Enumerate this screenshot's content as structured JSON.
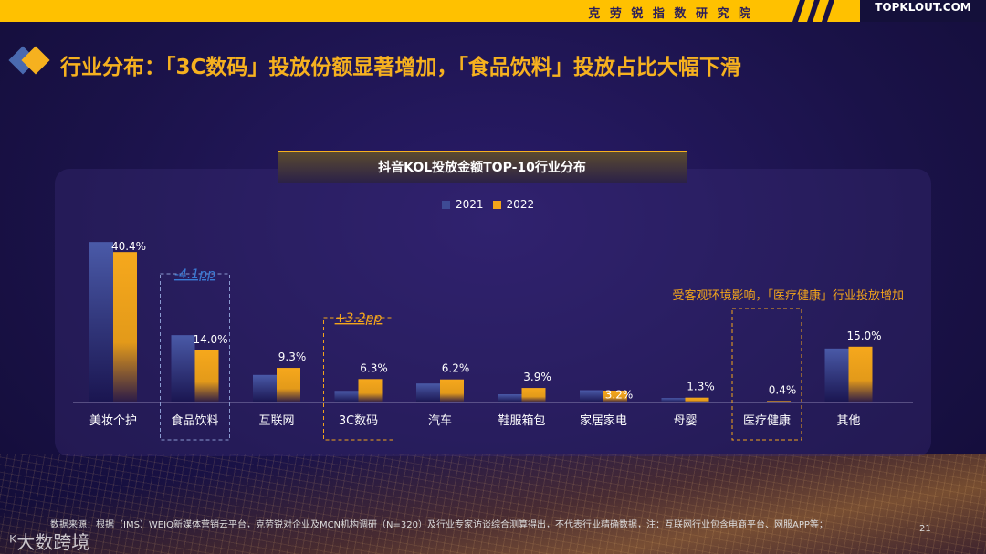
{
  "header": {
    "institute": "克 劳 锐 指 数 研 究 院",
    "logo": "TOPKLOUT.COM"
  },
  "title": "行业分布：「3C数码」投放份额显著增加，「食品饮料」投放占比大幅下滑",
  "colors": {
    "accent": "#f6b11f",
    "series2021": "#3e4a94",
    "series2022": "#f3a51b",
    "topbar": "#ffc100"
  },
  "chart_data": {
    "type": "bar",
    "title": "抖音KOL投放金额TOP-10行业分布",
    "categories": [
      "美妆个护",
      "食品饮料",
      "互联网",
      "3C数码",
      "汽车",
      "鞋服箱包",
      "家居家电",
      "母婴",
      "医疗健康",
      "其他"
    ],
    "series": [
      {
        "name": "2021",
        "values": [
          43.1,
          18.1,
          7.4,
          3.1,
          5.1,
          2.2,
          3.3,
          1.2,
          0.1,
          14.5
        ]
      },
      {
        "name": "2022",
        "values": [
          40.4,
          14.0,
          9.3,
          6.3,
          6.2,
          3.9,
          3.2,
          1.3,
          0.4,
          15.0
        ]
      }
    ],
    "data_labels": [
      "40.4%",
      "14.0%",
      "9.3%",
      "6.3%",
      "6.2%",
      "3.9%",
      "3.2%",
      "1.3%",
      "0.4%",
      "15.0%"
    ],
    "annotations": [
      {
        "category": "食品饮料",
        "text": "-4.1pp",
        "color": "#3a7bd5"
      },
      {
        "category": "3C数码",
        "text": "+3.2pp",
        "color": "#f3a51b"
      },
      {
        "category": "医疗健康",
        "text": "受客观环境影响，「医疗健康」行业投放增加",
        "color": "#f3a51b"
      }
    ],
    "ylim": [
      0,
      45
    ],
    "grid": false,
    "legend": "top-center"
  },
  "footer": {
    "source": "数据来源：根据（IMS）WEIQ新媒体营销云平台，克劳锐对企业及MCN机构调研（N=320）及行业专家访谈综合测算得出，不代表行业精确数据，注：互联网行业包含电商平台、网服APP等；",
    "page": "21",
    "watermark": "大数跨境"
  }
}
